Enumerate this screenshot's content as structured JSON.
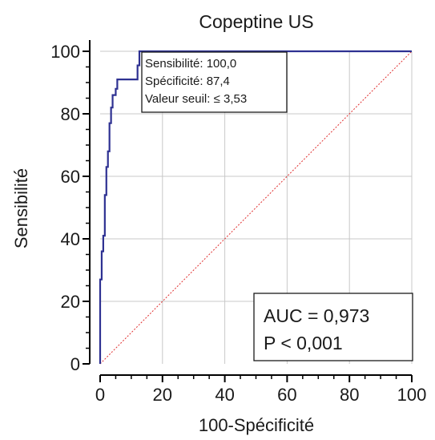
{
  "chart_data": {
    "type": "line",
    "title": "Copeptine US",
    "xlabel": "100-Spécificité",
    "ylabel": "Sensibilité",
    "xlim": [
      0,
      100
    ],
    "ylim": [
      0,
      100
    ],
    "xticks": [
      "0",
      "20",
      "40",
      "60",
      "80",
      "100"
    ],
    "yticks": [
      "0",
      "20",
      "40",
      "60",
      "80",
      "100"
    ],
    "grid": true,
    "colors": {
      "roc": "#2e3192",
      "reference": "#e03030",
      "grid": "#c8c8c8",
      "axis": "#000000"
    },
    "series": [
      {
        "x": [
          0,
          0,
          0.5,
          0.5,
          1,
          1,
          1.5,
          1.5,
          2,
          2,
          2.5,
          2.5,
          3,
          3,
          3.5,
          3.5,
          4,
          4,
          5,
          5,
          5.5,
          5.5,
          6,
          6,
          12,
          12,
          12.6,
          12.6,
          100
        ],
        "y": [
          0,
          27,
          27,
          36,
          36,
          41,
          41,
          54,
          54,
          63,
          63,
          68,
          68,
          77,
          77,
          82,
          82,
          86,
          86,
          88,
          88,
          91,
          91,
          91,
          91,
          95.5,
          95.5,
          100,
          100
        ]
      },
      {
        "x": [
          0,
          100
        ],
        "y": [
          0,
          100
        ]
      }
    ],
    "annotations": [
      {
        "lines": [
          "Sensibilité: 100,0",
          "Spécificité: 87,4",
          "Valeur seuil: ≤ 3,53"
        ]
      },
      {
        "lines": [
          "AUC = 0,973",
          "P < 0,001"
        ]
      }
    ]
  }
}
